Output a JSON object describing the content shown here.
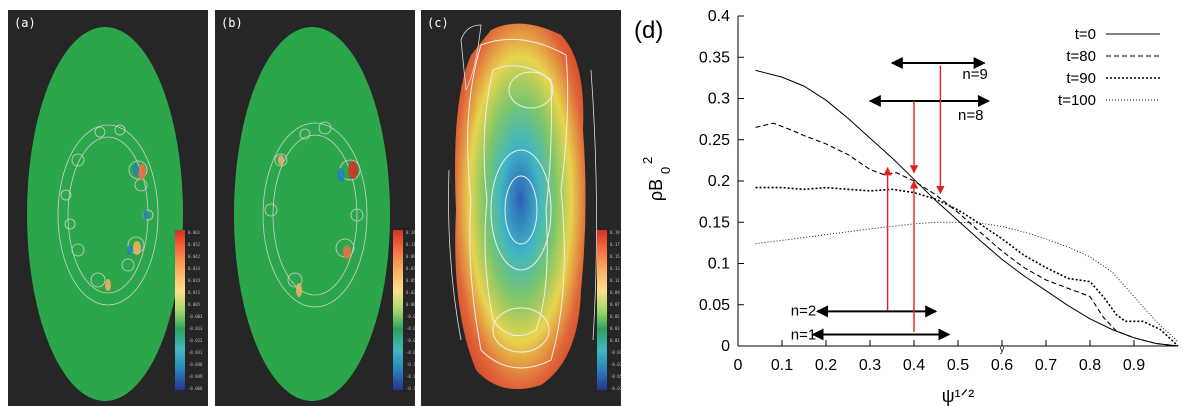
{
  "panels": [
    {
      "label": "(a)",
      "colorbar_ticks": [
        "0.061",
        "0.052",
        "0.042",
        "0.033",
        "0.024",
        "0.015",
        "0.005",
        "-0.003",
        "-0.013",
        "-0.022",
        "-0.031",
        "-0.040",
        "-0.049",
        "-0.068"
      ]
    },
    {
      "label": "(b)",
      "colorbar_ticks": [
        "0.141",
        "0.119",
        "0.096",
        "0.073",
        "0.051",
        "0.028",
        "0.006",
        "-0.017",
        "-0.040",
        "-0.062",
        "-0.085",
        "-0.107",
        "-0.130",
        "-0.153"
      ]
    },
    {
      "label": "(c)",
      "colorbar_ticks": [
        "0.19",
        "0.17",
        "0.15",
        "0.13",
        "0.11",
        "0.09",
        "0.07",
        "0.05",
        "0.03",
        "0.01",
        "-0.01",
        "-0.03",
        "-0.05",
        "-0.07"
      ]
    }
  ],
  "chart_data": {
    "panel_label": "(d)",
    "type": "line",
    "xlabel": "ψ¹ᐟ²",
    "xlabel_small": "y",
    "ylabel_main": "ρB",
    "ylabel_sub": "0",
    "ylabel_sup": "2",
    "xlim": [
      0,
      1.0
    ],
    "ylim": [
      0,
      0.4
    ],
    "xticks": [
      "0",
      "0.1",
      "0.2",
      "0.3",
      "0.4",
      "0.5",
      "0.6",
      "0.7",
      "0.8",
      "0.9"
    ],
    "yticks": [
      "0",
      "0.05",
      "0.1",
      "0.15",
      "0.2",
      "0.25",
      "0.3",
      "0.35",
      "0.4"
    ],
    "legend_position": "top-right",
    "series": [
      {
        "name": "t=0",
        "dash": "solid",
        "x": [
          0.04,
          0.1,
          0.15,
          0.2,
          0.25,
          0.3,
          0.35,
          0.4,
          0.45,
          0.5,
          0.55,
          0.6,
          0.65,
          0.7,
          0.75,
          0.8,
          0.85,
          0.9,
          0.95,
          1.0
        ],
        "y": [
          0.334,
          0.326,
          0.315,
          0.298,
          0.276,
          0.252,
          0.228,
          0.202,
          0.176,
          0.152,
          0.128,
          0.105,
          0.085,
          0.067,
          0.049,
          0.033,
          0.02,
          0.01,
          0.003,
          0.0
        ]
      },
      {
        "name": "t=80",
        "dash": "dashed",
        "x": [
          0.04,
          0.08,
          0.12,
          0.15,
          0.2,
          0.25,
          0.3,
          0.33,
          0.36,
          0.4,
          0.45,
          0.5,
          0.55,
          0.6,
          0.65,
          0.7,
          0.75,
          0.8,
          0.83,
          0.86,
          0.9,
          0.95,
          1.0
        ],
        "y": [
          0.265,
          0.27,
          0.262,
          0.255,
          0.245,
          0.232,
          0.214,
          0.208,
          0.21,
          0.2,
          0.183,
          0.162,
          0.138,
          0.115,
          0.095,
          0.08,
          0.07,
          0.06,
          0.035,
          0.018,
          0.01,
          0.003,
          0.0
        ]
      },
      {
        "name": "t=90",
        "dash": "dotted",
        "x": [
          0.04,
          0.1,
          0.15,
          0.2,
          0.25,
          0.3,
          0.35,
          0.4,
          0.45,
          0.5,
          0.55,
          0.6,
          0.65,
          0.7,
          0.75,
          0.8,
          0.83,
          0.86,
          0.88,
          0.92,
          0.96,
          1.0
        ],
        "y": [
          0.192,
          0.192,
          0.19,
          0.192,
          0.19,
          0.188,
          0.19,
          0.186,
          0.178,
          0.165,
          0.148,
          0.13,
          0.11,
          0.095,
          0.082,
          0.078,
          0.06,
          0.038,
          0.03,
          0.03,
          0.02,
          0.0
        ]
      },
      {
        "name": "t=100",
        "dash": "finedot",
        "x": [
          0.04,
          0.1,
          0.2,
          0.3,
          0.4,
          0.45,
          0.5,
          0.55,
          0.6,
          0.65,
          0.7,
          0.75,
          0.8,
          0.85,
          0.9,
          0.95,
          1.0
        ],
        "y": [
          0.124,
          0.128,
          0.135,
          0.142,
          0.148,
          0.15,
          0.15,
          0.149,
          0.145,
          0.138,
          0.13,
          0.12,
          0.108,
          0.09,
          0.06,
          0.03,
          0.005
        ]
      }
    ],
    "annotations": [
      {
        "text": "n=9",
        "arrow_x": [
          0.35,
          0.56
        ],
        "arrow_y": 0.343,
        "label_x": 0.51,
        "label_y": 0.33
      },
      {
        "text": "n=8",
        "arrow_x": [
          0.3,
          0.57
        ],
        "arrow_y": 0.297,
        "label_x": 0.5,
        "label_y": 0.28
      },
      {
        "text": "n=2",
        "arrow_x": [
          0.18,
          0.45
        ],
        "arrow_y": 0.042,
        "label_x": 0.12,
        "label_y": 0.043
      },
      {
        "text": "n=1",
        "arrow_x": [
          0.17,
          0.48
        ],
        "arrow_y": 0.014,
        "label_x": 0.12,
        "label_y": 0.014
      }
    ],
    "red_arrows": [
      {
        "x": 0.46,
        "y_from": 0.34,
        "y_to": 0.185
      },
      {
        "x": 0.4,
        "y_from": 0.297,
        "y_to": 0.21
      },
      {
        "x": 0.34,
        "y_from": 0.043,
        "y_to": 0.216
      },
      {
        "x": 0.4,
        "y_from": 0.017,
        "y_to": 0.2
      }
    ]
  }
}
